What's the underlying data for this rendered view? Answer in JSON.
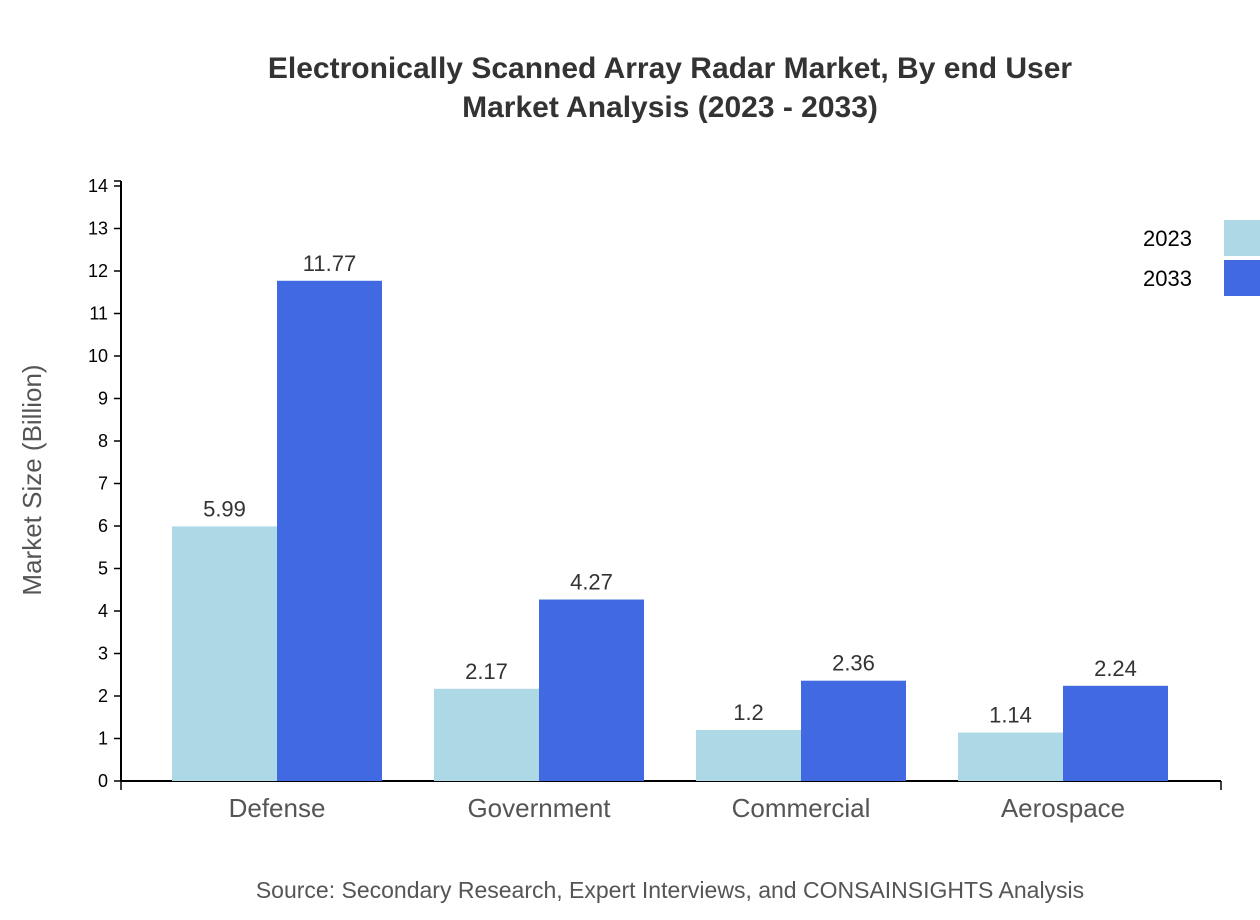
{
  "chart_data": {
    "type": "bar",
    "title": "Electronically Scanned Array Radar Market, By end User",
    "subtitle": "Market Analysis (2023 - 2033)",
    "xlabel": "",
    "ylabel": "Market Size (Billion)",
    "ylim": [
      0,
      14
    ],
    "yticks": [
      0,
      1,
      2,
      3,
      4,
      5,
      6,
      7,
      8,
      9,
      10,
      11,
      12,
      13,
      14
    ],
    "categories": [
      "Defense",
      "Government",
      "Commercial",
      "Aerospace"
    ],
    "series": [
      {
        "name": "2023",
        "values": [
          5.99,
          2.17,
          1.2,
          1.14
        ],
        "labels": [
          "5.99",
          "2.17",
          "1.2",
          "1.14"
        ],
        "color": "#add8e6"
      },
      {
        "name": "2033",
        "values": [
          11.77,
          4.27,
          2.36,
          2.24
        ],
        "labels": [
          "11.77",
          "4.27",
          "2.36",
          "2.24"
        ],
        "color": "#4169e1"
      }
    ],
    "grid": false,
    "legend": "top-right",
    "source": "Source: Secondary Research, Expert Interviews, and CONSAINSIGHTS Analysis"
  }
}
